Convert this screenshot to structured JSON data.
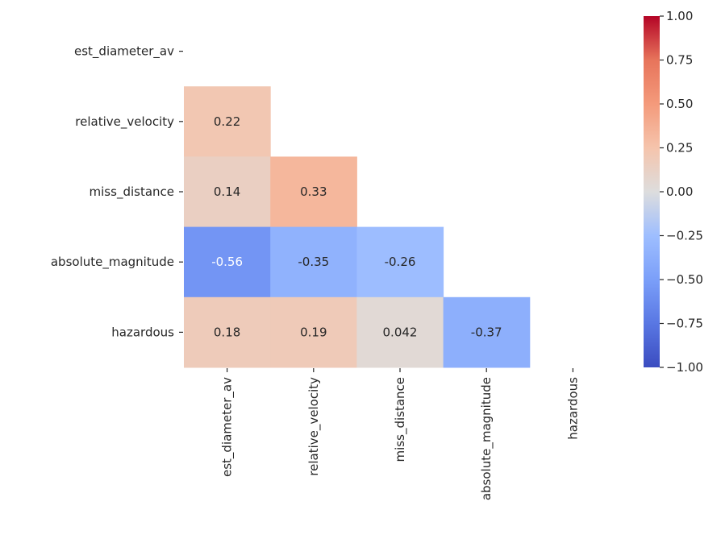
{
  "chart_data": {
    "type": "heatmap",
    "title": "",
    "xlabel": "",
    "ylabel": "",
    "variables": [
      "est_diameter_av",
      "relative_velocity",
      "miss_distance",
      "absolute_magnitude",
      "hazardous"
    ],
    "mask": "upper-triangle-including-diagonal",
    "cells": [
      {
        "row": 1,
        "col": 0,
        "value": 0.22,
        "label": "0.22"
      },
      {
        "row": 2,
        "col": 0,
        "value": 0.14,
        "label": "0.14"
      },
      {
        "row": 2,
        "col": 1,
        "value": 0.33,
        "label": "0.33"
      },
      {
        "row": 3,
        "col": 0,
        "value": -0.56,
        "label": "-0.56"
      },
      {
        "row": 3,
        "col": 1,
        "value": -0.35,
        "label": "-0.35"
      },
      {
        "row": 3,
        "col": 2,
        "value": -0.26,
        "label": "-0.26"
      },
      {
        "row": 4,
        "col": 0,
        "value": 0.18,
        "label": "0.18"
      },
      {
        "row": 4,
        "col": 1,
        "value": 0.19,
        "label": "0.19"
      },
      {
        "row": 4,
        "col": 2,
        "value": 0.042,
        "label": "0.042"
      },
      {
        "row": 4,
        "col": 3,
        "value": -0.37,
        "label": "-0.37"
      }
    ],
    "colormap": "coolwarm",
    "colorbar": {
      "vmin": -1.0,
      "vmax": 1.0,
      "ticks": [
        "1.00",
        "0.75",
        "0.50",
        "0.25",
        "0.00",
        "−0.25",
        "−0.50",
        "−0.75",
        "−1.00"
      ],
      "tick_values": [
        1.0,
        0.75,
        0.5,
        0.25,
        0.0,
        -0.25,
        -0.5,
        -0.75,
        -1.0
      ]
    },
    "grid": false,
    "legend": "colorbar-right"
  }
}
